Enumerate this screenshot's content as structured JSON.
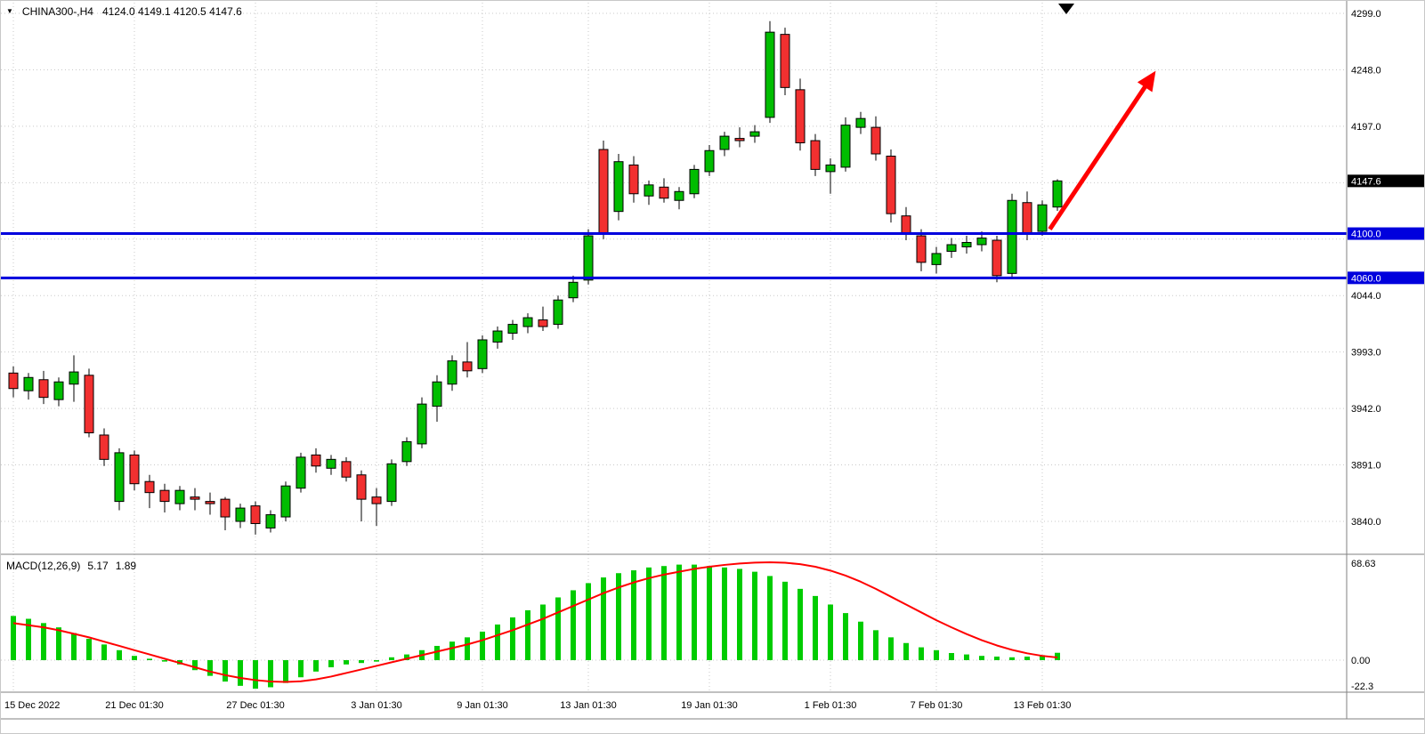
{
  "header": {
    "symbol": "CHINA300-,H4",
    "ohlc": "4124.0 4149.1 4120.5 4147.6"
  },
  "indicator": {
    "name": "MACD(12,26,9)",
    "macd_value": "5.17",
    "signal_value": "1.89"
  },
  "price_axis": {
    "labels": [
      {
        "text": "4299.0",
        "price": 4299
      },
      {
        "text": "4248.0",
        "price": 4248
      },
      {
        "text": "4197.0",
        "price": 4197
      },
      {
        "text": "4044.0",
        "price": 4044
      },
      {
        "text": "3993.0",
        "price": 3993
      },
      {
        "text": "3942.0",
        "price": 3942
      },
      {
        "text": "3891.0",
        "price": 3891
      },
      {
        "text": "3840.0",
        "price": 3840
      }
    ],
    "current_tag": {
      "text": "4147.6",
      "price": 4147.6
    },
    "level_tags": [
      {
        "text": "4100.0",
        "price": 4100
      },
      {
        "text": "4060.0",
        "price": 4060
      }
    ]
  },
  "macd_axis": {
    "labels": [
      {
        "text": "68.63",
        "value": 68.63
      },
      {
        "text": "0.00",
        "value": 0
      },
      {
        "text": "-22.3",
        "value": -22.3
      }
    ]
  },
  "time_axis": {
    "ticks": [
      {
        "label": "15 Dec 2022",
        "index": 0
      },
      {
        "label": "21 Dec 01:30",
        "index": 8
      },
      {
        "label": "27 Dec 01:30",
        "index": 16
      },
      {
        "label": "3 Jan 01:30",
        "index": 24
      },
      {
        "label": "9 Jan 01:30",
        "index": 31
      },
      {
        "label": "13 Jan 01:30",
        "index": 38
      },
      {
        "label": "19 Jan 01:30",
        "index": 46
      },
      {
        "label": "1 Feb 01:30",
        "index": 54
      },
      {
        "label": "7 Feb 01:30",
        "index": 61
      },
      {
        "label": "13 Feb 01:30",
        "index": 68
      }
    ]
  },
  "colors": {
    "background": "#ffffff",
    "bull": "#00bd00",
    "bear": "#f23030",
    "candle_border": "#000000",
    "wick": "#000000",
    "grid": "#c9c9c9",
    "histogram": "#00cc00",
    "signal_line": "#ff0000",
    "level_line": "#0000dd",
    "current_tag_bg": "#000000",
    "level_tag_bg": "#0000dd",
    "tag_text": "#ffffff",
    "arrow": "#ff0000",
    "separator": "#828282",
    "axis_text": "#000000"
  },
  "chart_data": {
    "type": "candlestick",
    "title": "CHINA300-,H4",
    "symbol": "CHINA300",
    "timeframe": "H4",
    "current_bar": {
      "open": 4124.0,
      "high": 4149.1,
      "low": 4120.5,
      "close": 4147.6
    },
    "price_grid": [
      4299,
      4248,
      4197,
      4146,
      4095,
      4044,
      3993,
      3942,
      3891,
      3840
    ],
    "price_range": [
      3828,
      4299
    ],
    "support_resistance_lines": [
      4100,
      4060
    ],
    "arrow_annotation": {
      "from": {
        "index": 68.5,
        "price": 4104
      },
      "to": {
        "index": 75.3,
        "price": 4243
      }
    },
    "candles": [
      [
        3974,
        3980,
        3952,
        3960
      ],
      [
        3958,
        3974,
        3950,
        3970
      ],
      [
        3968,
        3976,
        3946,
        3952
      ],
      [
        3950,
        3970,
        3944,
        3966
      ],
      [
        3964,
        3990,
        3948,
        3975
      ],
      [
        3972,
        3978,
        3916,
        3920
      ],
      [
        3918,
        3924,
        3890,
        3896
      ],
      [
        3858,
        3906,
        3850,
        3902
      ],
      [
        3900,
        3904,
        3868,
        3874
      ],
      [
        3876,
        3882,
        3852,
        3866
      ],
      [
        3868,
        3874,
        3848,
        3858
      ],
      [
        3856,
        3872,
        3850,
        3868
      ],
      [
        3862,
        3870,
        3850,
        3860
      ],
      [
        3858,
        3866,
        3846,
        3856
      ],
      [
        3860,
        3862,
        3832,
        3844
      ],
      [
        3840,
        3856,
        3834,
        3852
      ],
      [
        3854,
        3858,
        3828,
        3838
      ],
      [
        3834,
        3850,
        3830,
        3846
      ],
      [
        3844,
        3876,
        3840,
        3872
      ],
      [
        3870,
        3902,
        3866,
        3898
      ],
      [
        3900,
        3906,
        3884,
        3890
      ],
      [
        3888,
        3900,
        3882,
        3896
      ],
      [
        3894,
        3898,
        3876,
        3880
      ],
      [
        3882,
        3886,
        3840,
        3860
      ],
      [
        3862,
        3870,
        3836,
        3856
      ],
      [
        3858,
        3896,
        3854,
        3892
      ],
      [
        3894,
        3916,
        3890,
        3912
      ],
      [
        3910,
        3952,
        3906,
        3946
      ],
      [
        3944,
        3972,
        3930,
        3966
      ],
      [
        3964,
        3990,
        3958,
        3985
      ],
      [
        3984,
        4002,
        3970,
        3976
      ],
      [
        3978,
        4008,
        3974,
        4004
      ],
      [
        4002,
        4016,
        3996,
        4012
      ],
      [
        4010,
        4022,
        4004,
        4018
      ],
      [
        4016,
        4028,
        4010,
        4024
      ],
      [
        4022,
        4034,
        4012,
        4016
      ],
      [
        4018,
        4044,
        4014,
        4040
      ],
      [
        4042,
        4062,
        4038,
        4056
      ],
      [
        4058,
        4104,
        4054,
        4098
      ],
      [
        4176,
        4184,
        4095,
        4100
      ],
      [
        4120,
        4172,
        4112,
        4165
      ],
      [
        4162,
        4170,
        4128,
        4136
      ],
      [
        4134,
        4148,
        4126,
        4144
      ],
      [
        4142,
        4150,
        4128,
        4132
      ],
      [
        4130,
        4142,
        4122,
        4138
      ],
      [
        4136,
        4162,
        4132,
        4158
      ],
      [
        4156,
        4180,
        4152,
        4175
      ],
      [
        4176,
        4192,
        4170,
        4188
      ],
      [
        4186,
        4196,
        4178,
        4184
      ],
      [
        4188,
        4198,
        4182,
        4192
      ],
      [
        4205,
        4292,
        4200,
        4282
      ],
      [
        4280,
        4286,
        4225,
        4232
      ],
      [
        4230,
        4240,
        4175,
        4182
      ],
      [
        4184,
        4190,
        4152,
        4158
      ],
      [
        4156,
        4168,
        4136,
        4162
      ],
      [
        4160,
        4205,
        4156,
        4198
      ],
      [
        4196,
        4210,
        4190,
        4204
      ],
      [
        4196,
        4206,
        4166,
        4172
      ],
      [
        4170,
        4176,
        4110,
        4118
      ],
      [
        4116,
        4124,
        4094,
        4100
      ],
      [
        4098,
        4104,
        4066,
        4074
      ],
      [
        4072,
        4088,
        4064,
        4082
      ],
      [
        4084,
        4096,
        4078,
        4090
      ],
      [
        4088,
        4098,
        4082,
        4092
      ],
      [
        4090,
        4102,
        4084,
        4096
      ],
      [
        4094,
        4098,
        4056,
        4062
      ],
      [
        4064,
        4136,
        4060,
        4130
      ],
      [
        4128,
        4138,
        4094,
        4100
      ],
      [
        4102,
        4130,
        4098,
        4126
      ],
      [
        4124,
        4149.1,
        4120.5,
        4147.6
      ]
    ],
    "macd": {
      "params": "12,26,9",
      "axis_range": [
        -22.3,
        68.63
      ],
      "histogram": [
        31,
        29,
        26,
        23,
        19,
        15,
        11,
        7,
        3,
        1,
        -1,
        -3,
        -7,
        -11,
        -15,
        -18,
        -20,
        -19,
        -16,
        -12,
        -8,
        -5,
        -3,
        -2,
        -1,
        2,
        4,
        7,
        10,
        13,
        16,
        20,
        25,
        30,
        35,
        39,
        44,
        49,
        54,
        58,
        61,
        63,
        65,
        66,
        67,
        67,
        66,
        65,
        64,
        62,
        59,
        55,
        50,
        45,
        39,
        33,
        27,
        21,
        16,
        12,
        9,
        7,
        5,
        4,
        3,
        2.5,
        2,
        2.5,
        3.5,
        5.17
      ],
      "signal": [
        26,
        24.5,
        23,
        21,
        18.5,
        16,
        13,
        10,
        7,
        4,
        1,
        -2,
        -5,
        -8,
        -10.5,
        -12.5,
        -14,
        -15,
        -15.3,
        -14.8,
        -13.5,
        -11.5,
        -9,
        -6.5,
        -4,
        -1.5,
        1,
        3.5,
        6,
        8.5,
        11,
        14,
        17.5,
        21,
        25,
        29,
        33.5,
        38,
        42.5,
        47,
        51,
        54.5,
        57.5,
        60,
        62,
        64,
        65.5,
        66.8,
        67.8,
        68.4,
        68.63,
        68.3,
        67.3,
        65.5,
        62.8,
        59.3,
        55,
        50,
        44.5,
        39,
        33.5,
        28,
        23,
        18.3,
        14,
        10.3,
        7.2,
        4.8,
        3,
        1.89
      ]
    }
  }
}
